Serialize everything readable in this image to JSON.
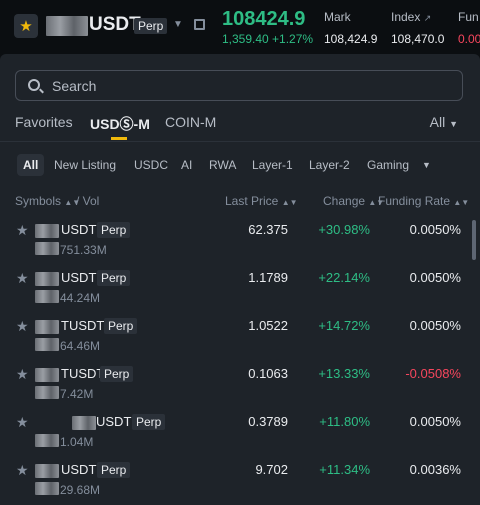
{
  "header": {
    "symbol": "USDT",
    "perp_tag": "Perp",
    "last_price": "108424.9",
    "change": "1,359.40 +1.27%",
    "mark_label": "Mark",
    "mark_value": "108,424.9",
    "index_label": "Index",
    "index_value": "108,470.0",
    "funding_label": "Fun",
    "funding_value": "0.00"
  },
  "search": {
    "placeholder": "Search"
  },
  "tabs": [
    {
      "label": "Favorites"
    },
    {
      "label": "USDⓈ-M"
    },
    {
      "label": "COIN-M"
    }
  ],
  "tab_all_label": "All",
  "chips": [
    {
      "label": "All"
    },
    {
      "label": "New Listing"
    },
    {
      "label": "USDC"
    },
    {
      "label": "AI"
    },
    {
      "label": "RWA"
    },
    {
      "label": "Layer-1"
    },
    {
      "label": "Layer-2"
    },
    {
      "label": "Gaming"
    }
  ],
  "columns": {
    "symbols": "Symbols",
    "vol": "/ Vol",
    "last_price": "Last Price",
    "change": "Change",
    "funding_rate": "Funding Rate"
  },
  "rows": [
    {
      "symbol": "USDT",
      "perp": "Perp",
      "vol": "751.33M",
      "price": "62.375",
      "change": "+30.98%",
      "funding": "0.0050%"
    },
    {
      "symbol": "USDT",
      "perp": "Perp",
      "vol": "44.24M",
      "price": "1.1789",
      "change": "+22.14%",
      "funding": "0.0050%"
    },
    {
      "symbol": "TUSDT",
      "perp": "Perp",
      "vol": "64.46M",
      "price": "1.0522",
      "change": "+14.72%",
      "funding": "0.0050%"
    },
    {
      "symbol": "TUSDT",
      "perp": "Perp",
      "vol": "7.42M",
      "price": "0.1063",
      "change": "+13.33%",
      "funding": "-0.0508%"
    },
    {
      "symbol": "USDT",
      "perp": "Perp",
      "vol": "1.04M",
      "price": "0.3789",
      "change": "+11.80%",
      "funding": "0.0050%"
    },
    {
      "symbol": "USDT",
      "perp": "Perp",
      "vol": "29.68M",
      "price": "9.702",
      "change": "+11.34%",
      "funding": "0.0036%"
    }
  ],
  "colors": {
    "positive": "#2ebd85",
    "negative": "#f6465d",
    "accent": "#f0b90b"
  }
}
